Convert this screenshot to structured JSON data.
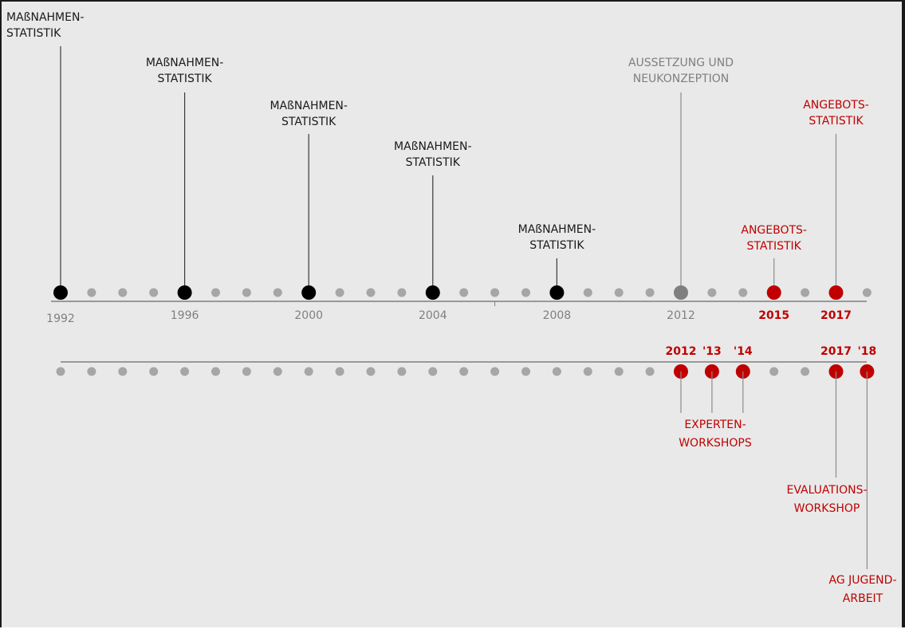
{
  "colors": {
    "background": "#e9e9e9",
    "axis": "#7f7f7f",
    "dot_minor": "#a6a6a6",
    "event_black": "#000000",
    "event_gray": "#7f7f7f",
    "event_red": "#c00000",
    "label_black": "#1a1a1a",
    "label_gray": "#7f7f7f",
    "year_gray": "#808080",
    "label_red": "#c00000"
  },
  "timeline_top": {
    "start_year": 1992,
    "end_year": 2018,
    "year_labels": [
      {
        "year": 1992,
        "text": "1992",
        "color": "gray"
      },
      {
        "year": 1996,
        "text": "1996",
        "color": "gray"
      },
      {
        "year": 2000,
        "text": "2000",
        "color": "gray"
      },
      {
        "year": 2004,
        "text": "2004",
        "color": "gray"
      },
      {
        "year": 2008,
        "text": "2008",
        "color": "gray"
      },
      {
        "year": 2012,
        "text": "2012",
        "color": "gray"
      },
      {
        "year": 2015,
        "text": "2015",
        "color": "red"
      },
      {
        "year": 2017,
        "text": "2017",
        "color": "red"
      }
    ],
    "events": [
      {
        "year": 1992,
        "color": "black",
        "lines": [
          "MAßNAHMEN-",
          "STATISTIK"
        ]
      },
      {
        "year": 1996,
        "color": "black",
        "lines": [
          "MAßNAHMEN-",
          "STATISTIK"
        ]
      },
      {
        "year": 2000,
        "color": "black",
        "lines": [
          "MAßNAHMEN-",
          "STATISTIK"
        ]
      },
      {
        "year": 2004,
        "color": "black",
        "lines": [
          "MAßNAHMEN-",
          "STATISTIK"
        ]
      },
      {
        "year": 2008,
        "color": "black",
        "lines": [
          "MAßNAHMEN-",
          "STATISTIK"
        ]
      },
      {
        "year": 2012,
        "color": "gray",
        "lines": [
          "AUSSETZUNG UND",
          "NEUKONZEPTION"
        ]
      },
      {
        "year": 2015,
        "color": "red",
        "lines": [
          "ANGEBOTS-",
          "STATISTIK"
        ]
      },
      {
        "year": 2017,
        "color": "red",
        "lines": [
          "ANGEBOTS-",
          "STATISTIK"
        ]
      }
    ]
  },
  "timeline_bottom": {
    "start_year": 1992,
    "end_year": 2018,
    "year_labels": [
      {
        "year": 2012,
        "text": "2012"
      },
      {
        "year": 2013,
        "text": "'13"
      },
      {
        "year": 2014,
        "text": "'14"
      },
      {
        "year": 2017,
        "text": "2017"
      },
      {
        "year": 2018,
        "text": "'18"
      }
    ],
    "highlighted_years": [
      2012,
      2013,
      2014,
      2017,
      2018
    ],
    "events": [
      {
        "years": [
          2012,
          2013,
          2014
        ],
        "lines": [
          "EXPERTEN-",
          "WORKSHOPS"
        ]
      },
      {
        "years": [
          2017
        ],
        "lines": [
          "EVALUATIONS-",
          "WORKSHOP"
        ]
      },
      {
        "years": [
          2018
        ],
        "lines": [
          "AG JUGEND-",
          "ARBEIT"
        ]
      }
    ]
  }
}
